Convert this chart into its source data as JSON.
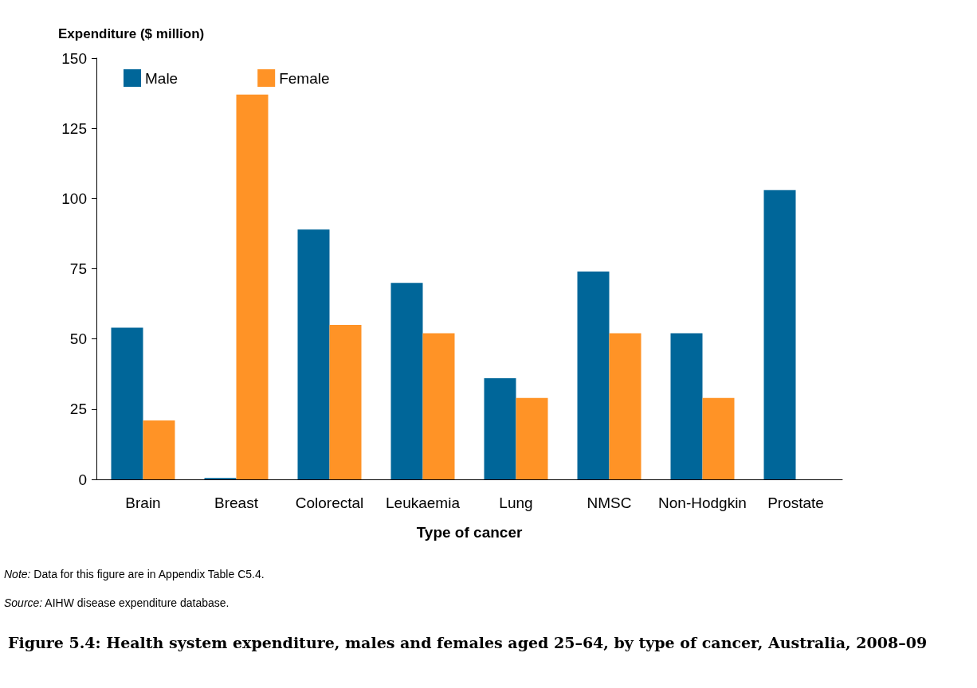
{
  "chart_data": {
    "type": "bar",
    "title": "Figure 5.4: Health system expenditure, males and females aged 25–64, by type of cancer, Australia, 2008–09",
    "xlabel": "Type of cancer",
    "ylabel": "Expenditure ($ million)",
    "categories": [
      "Brain",
      "Breast",
      "Colorectal",
      "Leukaemia",
      "Lung",
      "NMSC",
      "Non-Hodgkin",
      "Prostate"
    ],
    "series": [
      {
        "name": "Male",
        "color": "#006699",
        "values": [
          54,
          0.5,
          89,
          70,
          36,
          74,
          52,
          103
        ]
      },
      {
        "name": "Female",
        "color": "#ff9326",
        "values": [
          21,
          137,
          55,
          52,
          29,
          52,
          29,
          null
        ]
      }
    ],
    "ylim": [
      0,
      150
    ],
    "yticks": [
      0,
      25,
      50,
      75,
      100,
      125,
      150
    ],
    "grid": false,
    "legend": "top left",
    "annotations": [
      "Note: Data for this figure are in Appendix Table C5.4.",
      "Source: AIHW disease expenditure database."
    ]
  }
}
